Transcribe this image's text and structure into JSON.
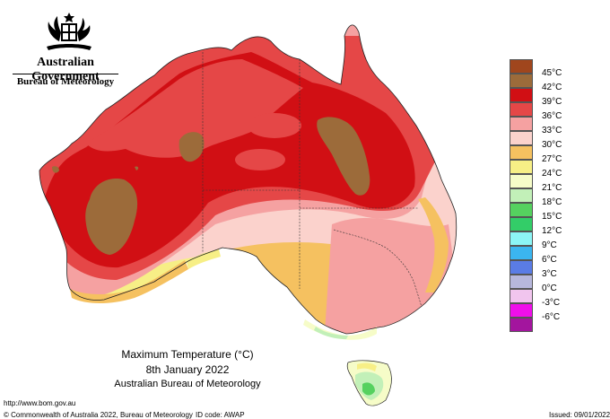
{
  "header": {
    "government": "Australian Government",
    "bureau": "Bureau of Meteorology"
  },
  "title": {
    "line1": "Maximum Temperature (°C)",
    "line2": "8th January 2022",
    "line3": "Australian Bureau of Meteorology"
  },
  "legend": [
    {
      "label": "45°C",
      "color": "#a0461d"
    },
    {
      "label": "42°C",
      "color": "#9c6b3a"
    },
    {
      "label": "39°C",
      "color": "#d10f14"
    },
    {
      "label": "36°C",
      "color": "#e54747"
    },
    {
      "label": "33°C",
      "color": "#f5a1a1"
    },
    {
      "label": "30°C",
      "color": "#fbd2cc"
    },
    {
      "label": "27°C",
      "color": "#f5c160"
    },
    {
      "label": "24°C",
      "color": "#f7ef86"
    },
    {
      "label": "21°C",
      "color": "#f6fcc8"
    },
    {
      "label": "18°C",
      "color": "#c2f0b8"
    },
    {
      "label": "15°C",
      "color": "#55d15f"
    },
    {
      "label": "12°C",
      "color": "#33cd68"
    },
    {
      "label": "9°C",
      "color": "#8cf5f5"
    },
    {
      "label": "6°C",
      "color": "#3bb5ef"
    },
    {
      "label": "3°C",
      "color": "#5a7ce5"
    },
    {
      "label": "0°C",
      "color": "#b7b7dc"
    },
    {
      "label": "-3°C",
      "color": "#f1c5ee"
    },
    {
      "label": "-6°C",
      "color": "#ef0fea"
    },
    {
      "label": "",
      "color": "#a3159e"
    }
  ],
  "footer": {
    "url": "http://www.bom.gov.au",
    "copyright": "© Commonwealth of Australia 2022, Bureau of Meteorology",
    "id_code": "ID code: AWAP",
    "issued": "Issued: 09/01/2022"
  }
}
